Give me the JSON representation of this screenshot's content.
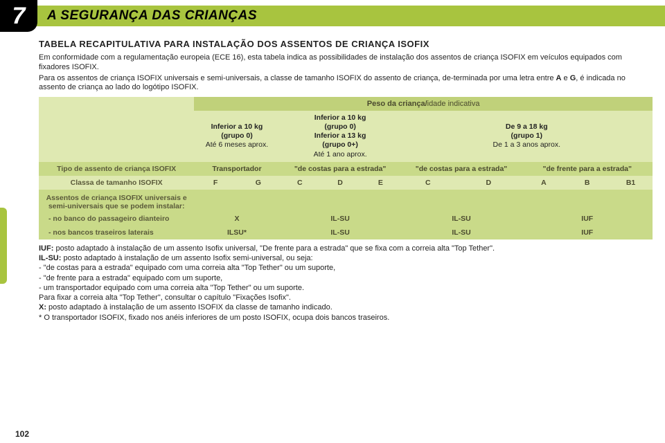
{
  "chapter_number": "7",
  "header_title": "A SEGURANÇA DAS CRIANÇAS",
  "subtitle": "TABELA RECAPITULATIVA PARA INSTALAÇÃO DOS ASSENTOS DE CRIANÇA ISOFIX",
  "intro1": "Em conformidade com a regulamentação europeia (ECE 16), esta tabela indica as possibilidades de instalação dos assentos de criança ISOFIX em veículos equipados com fixadores ISOFIX.",
  "intro2_a": "Para os assentos de criança ISOFIX universais e semi-universais, a classe de tamanho ISOFIX do assento de criança, de-terminada por uma letra entre ",
  "intro2_b": "A",
  "intro2_c": " e ",
  "intro2_d": "G",
  "intro2_e": ", é indicada no assento de criança ao lado do logótipo ISOFIX.",
  "table": {
    "peso_label_bold": "Peso da criança/",
    "peso_label_light": "idade indicativa",
    "weight_groups": {
      "g0": {
        "l1": "Inferior a 10 kg",
        "l2": "(grupo  0)",
        "l3": "Até 6 meses aprox."
      },
      "g0p": {
        "l1": "Inferior a 10 kg",
        "l2": "(grupo 0)",
        "l3": "Inferior a 13 kg",
        "l4": "(grupo 0+)",
        "l5": "Até 1 ano aprox."
      },
      "g1": {
        "l1": "De 9 a 18 kg",
        "l2": "(grupo 1)",
        "l3": "De 1 a 3 anos aprox."
      }
    },
    "row_tipo_label": "Tipo de assento de criança ISOFIX",
    "tipo": {
      "col1": "Transportador",
      "col2": "\"de costas para a estrada\"",
      "col3": "\"de costas para a estrada\"",
      "col4": "\"de frente para a estrada\""
    },
    "row_classa_label": "Classa de tamanho ISOFIX",
    "size_classes": [
      "F",
      "G",
      "C",
      "D",
      "E",
      "C",
      "D",
      "A",
      "B",
      "B1"
    ],
    "row_assentos_label": "Assentos de criança ISOFIX universais e semi-universais que se podem instalar:",
    "row_pass_front_label": "- no banco do passageiro dianteiro",
    "row_pass_front_vals": [
      "X",
      "IL-SU",
      "IL-SU",
      "IUF"
    ],
    "row_rear_label": "- nos bancos traseiros laterais",
    "row_rear_vals": [
      "ILSU*",
      "IL-SU",
      "IL-SU",
      "IUF"
    ]
  },
  "notes": {
    "iuf_b": "IUF:",
    "iuf": " posto adaptado à instalação de um assento Isofix universal, \"De frente para a estrada\" que se fixa com a correia alta \"Top Tether\".",
    "ilsu_b": "IL-SU:",
    "ilsu": " posto adaptado à instalação de um assento Isofix semi-universal, ou seja:",
    "li1": "-  \"de costas para a estrada\" equipado com uma correia alta \"Top Tether\" ou um suporte,",
    "li2": "-  \"de frente para a estrada\" equipado com um suporte,",
    "li3": "-  um transportador equipado com uma correia alta \"Top Tether\" ou um suporte.",
    "fixar": "Para fixar a correia alta \"Top Tether\", consultar o capítulo \"Fixações Isofix\".",
    "x_b": "X:",
    "x": " posto adaptado à instalação de um assento ISOFIX da classe de tamanho indicado.",
    "star": "*   O transportador ISOFIX, fixado nos anéis inferiores de um posto ISOFIX, ocupa dois bancos traseiros."
  },
  "page_number": "102",
  "colors": {
    "accent": "#a8c43f",
    "light_green": "#dfe9b2",
    "mid_green": "#c9da89",
    "header_green": "#c0d17a"
  }
}
